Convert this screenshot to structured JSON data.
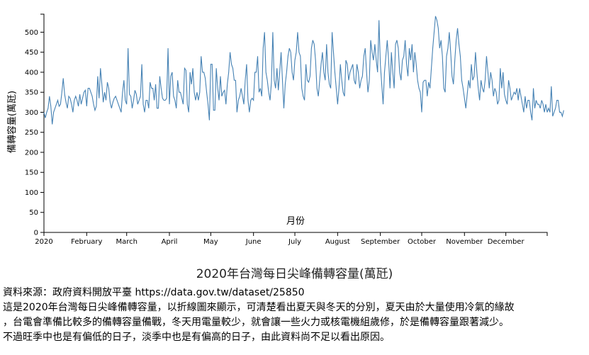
{
  "chart_data": {
    "type": "line",
    "title": "2020年台灣每日尖峰備轉容量(萬瓩)",
    "xlabel": "月份",
    "ylabel": "備轉容量(萬瓩)",
    "x_start": "2020-01-01",
    "x_end": "2020-12-31",
    "x_ticks": [
      "2020",
      "February",
      "March",
      "April",
      "May",
      "June",
      "July",
      "August",
      "September",
      "October",
      "November",
      "December"
    ],
    "y_ticks": [
      0,
      50,
      100,
      150,
      200,
      250,
      300,
      350,
      400,
      450,
      500
    ],
    "ylim": [
      0,
      545
    ],
    "grid": false,
    "line_color": "#4682b4",
    "series": [
      {
        "values": [
          300,
          286,
          300,
          310,
          340,
          315,
          270,
          300,
          310,
          320,
          330,
          315,
          320,
          350,
          385,
          345,
          325,
          310,
          340,
          335,
          320,
          300,
          330,
          340,
          330,
          315,
          345,
          320,
          335,
          350,
          355,
          315,
          360,
          360,
          350,
          340,
          320,
          305,
          315,
          390,
          335,
          410,
          370,
          325,
          350,
          330,
          375,
          360,
          325,
          310,
          325,
          335,
          340,
          330,
          320,
          310,
          300,
          350,
          380,
          330,
          320,
          460,
          345,
          340,
          310,
          330,
          355,
          345,
          320,
          330,
          340,
          420,
          320,
          300,
          330,
          330,
          310,
          375,
          360,
          360,
          330,
          370,
          310,
          310,
          390,
          360,
          335,
          330,
          330,
          335,
          460,
          320,
          390,
          400,
          340,
          330,
          310,
          380,
          350,
          350,
          335,
          320,
          410,
          405,
          320,
          300,
          400,
          370,
          410,
          350,
          330,
          350,
          330,
          350,
          440,
          400,
          400,
          385,
          350,
          320,
          280,
          420,
          420,
          305,
          305,
          410,
          360,
          330,
          390,
          340,
          350,
          355,
          320,
          370,
          400,
          450,
          420,
          410,
          380,
          380,
          300,
          330,
          340,
          360,
          340,
          320,
          380,
          420,
          330,
          300,
          330,
          335,
          330,
          400,
          400,
          440,
          350,
          360,
          340,
          460,
          500,
          400,
          380,
          350,
          330,
          375,
          500,
          380,
          360,
          410,
          355,
          400,
          450,
          380,
          310,
          370,
          400,
          440,
          460,
          450,
          400,
          380,
          430,
          450,
          500,
          450,
          440,
          360,
          340,
          330,
          420,
          380,
          375,
          390,
          460,
          480,
          470,
          430,
          360,
          340,
          380,
          420,
          450,
          400,
          380,
          470,
          400,
          370,
          360,
          500,
          450,
          400,
          360,
          320,
          360,
          420,
          380,
          350,
          340,
          430,
          420,
          380,
          400,
          410,
          420,
          380,
          370,
          420,
          400,
          360,
          380,
          390,
          440,
          460,
          400,
          350,
          380,
          480,
          450,
          430,
          470,
          430,
          400,
          530,
          420,
          370,
          320,
          400,
          440,
          480,
          430,
          360,
          450,
          400,
          360,
          470,
          480,
          460,
          400,
          380,
          430,
          440,
          480,
          420,
          390,
          460,
          430,
          470,
          400,
          450,
          420,
          380,
          360,
          350,
          300,
          375,
          380,
          380,
          340,
          375,
          360,
          410,
          460,
          500,
          540,
          530,
          510,
          460,
          480,
          440,
          360,
          350,
          440,
          460,
          500,
          450,
          390,
          370,
          430,
          480,
          510,
          470,
          440,
          380,
          360,
          335,
          310,
          345,
          380,
          360,
          420,
          380,
          390,
          450,
          400,
          360,
          330,
          380,
          360,
          350,
          380,
          440,
          400,
          360,
          400,
          380,
          340,
          360,
          350,
          320,
          330,
          410,
          360,
          400,
          345,
          330,
          320,
          380,
          360,
          330,
          340,
          350,
          345,
          360,
          330,
          360,
          340,
          320,
          300,
          340,
          310,
          330,
          330,
          300,
          280,
          360,
          310,
          330,
          320,
          320,
          310,
          330,
          320,
          300,
          320,
          300,
          310,
          300,
          365,
          290,
          300,
          310,
          330,
          330,
          300,
          300,
          290,
          305
        ]
      }
    ]
  },
  "caption": {
    "title": "2020年台灣每日尖峰備轉容量(萬瓩)",
    "lines": [
      "資料來源：政府資料開放平臺 https://data.gov.tw/dataset/25850",
      "這是2020年台灣每日尖峰備轉容量，以折線圖來顯示，可清楚看出夏天與冬天的分別，夏天由於大量使用冷氣的緣故",
      "，台電會準備比較多的備轉容量備戰，冬天用電量較少，就會讓一些火力或核電機組歲修，於是備轉容量跟著減少。",
      "不過旺季中也是有偏低的日子，淡季中也是有偏高的日子，由此資料尚不足以看出原因。"
    ]
  }
}
